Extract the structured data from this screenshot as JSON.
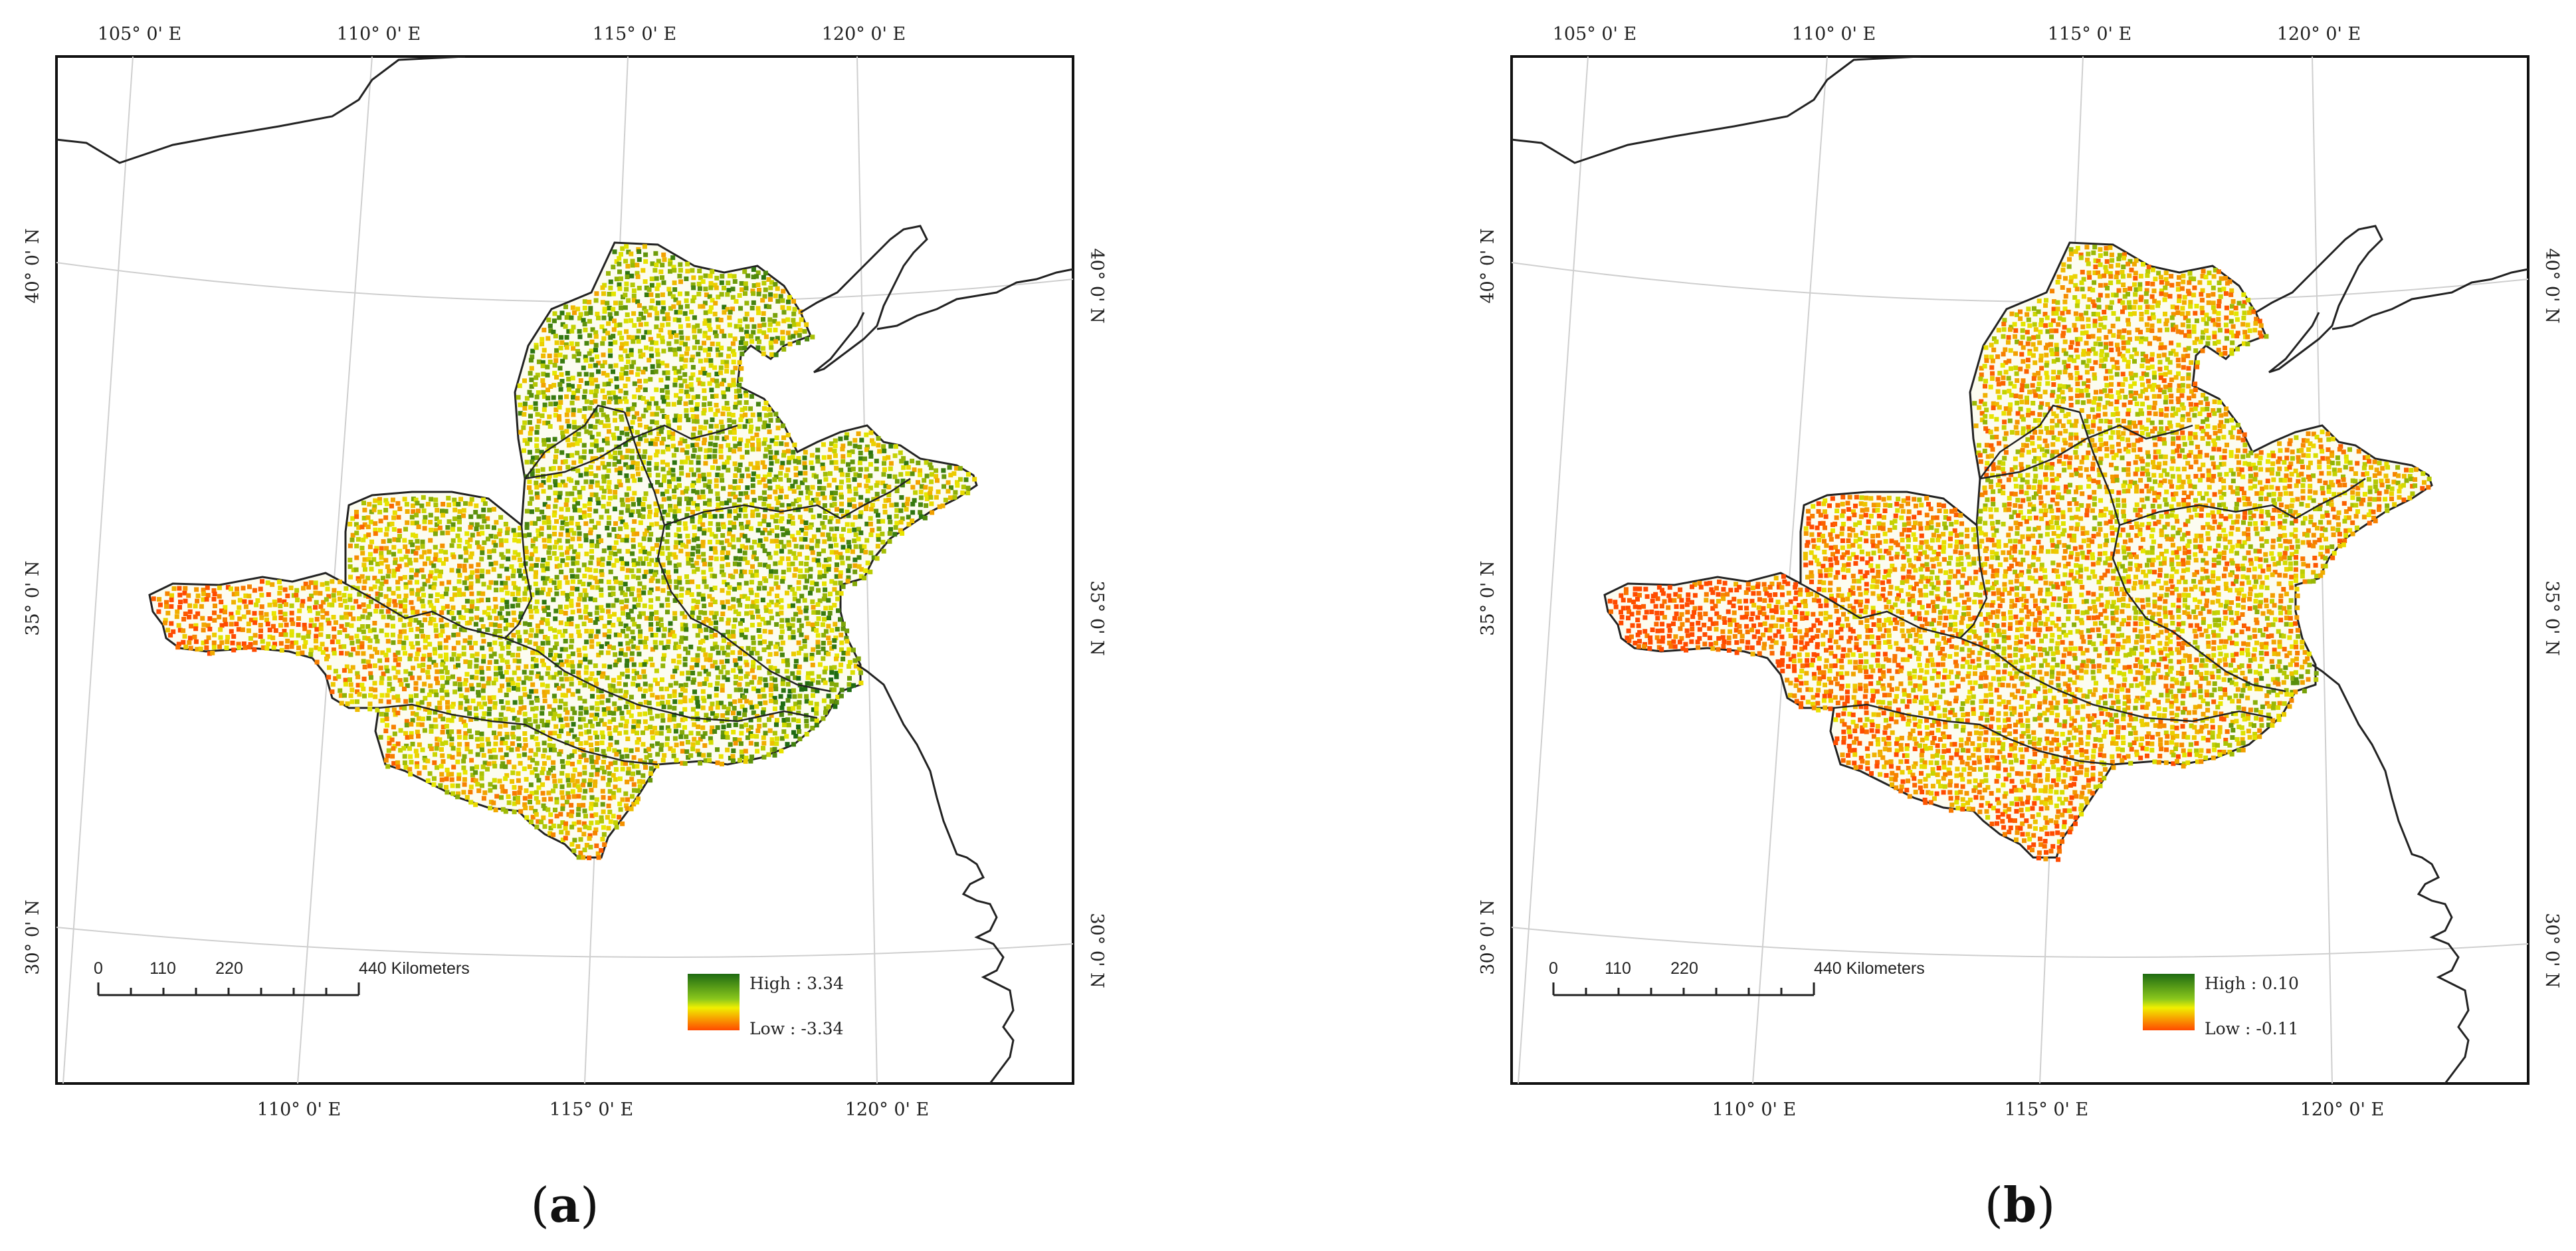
{
  "panels": [
    {
      "id": "a",
      "label_letter": "a",
      "lon_top": [
        "105° 0' E",
        "110° 0' E",
        "115° 0' E",
        "120° 0' E"
      ],
      "lon_bottom": [
        "110° 0' E",
        "115° 0' E",
        "120° 0' E"
      ],
      "lat_left": [
        "40° 0' N",
        "35° 0' N",
        "30° 0' N"
      ],
      "lat_right": [
        "40° 0' N",
        "35° 0' N",
        "30° 0' N"
      ],
      "scale_ticks": [
        "0",
        "110",
        "220",
        "440 Kilometers"
      ],
      "legend_high": "High : 3.34",
      "legend_low": "Low : -3.34",
      "green_weight": 0.62
    },
    {
      "id": "b",
      "label_letter": "b",
      "lon_top": [
        "105° 0' E",
        "110° 0' E",
        "115° 0' E",
        "120° 0' E"
      ],
      "lon_bottom": [
        "110° 0' E",
        "115° 0' E",
        "120° 0' E"
      ],
      "lat_left": [
        "40° 0' N",
        "35° 0' N",
        "30° 0' N"
      ],
      "lat_right": [
        "40° 0' N",
        "35° 0' N",
        "30° 0' N"
      ],
      "scale_ticks": [
        "0",
        "110",
        "220",
        "440 Kilometers"
      ],
      "legend_high": "High : 0.10",
      "legend_low": "Low : -0.11",
      "green_weight": 0.38
    }
  ],
  "colors": {
    "high": "#1e6b12",
    "mid": "#e8e800",
    "low": "#ff4a00",
    "outline": "#222222",
    "graticule": "#cfcfcf"
  }
}
